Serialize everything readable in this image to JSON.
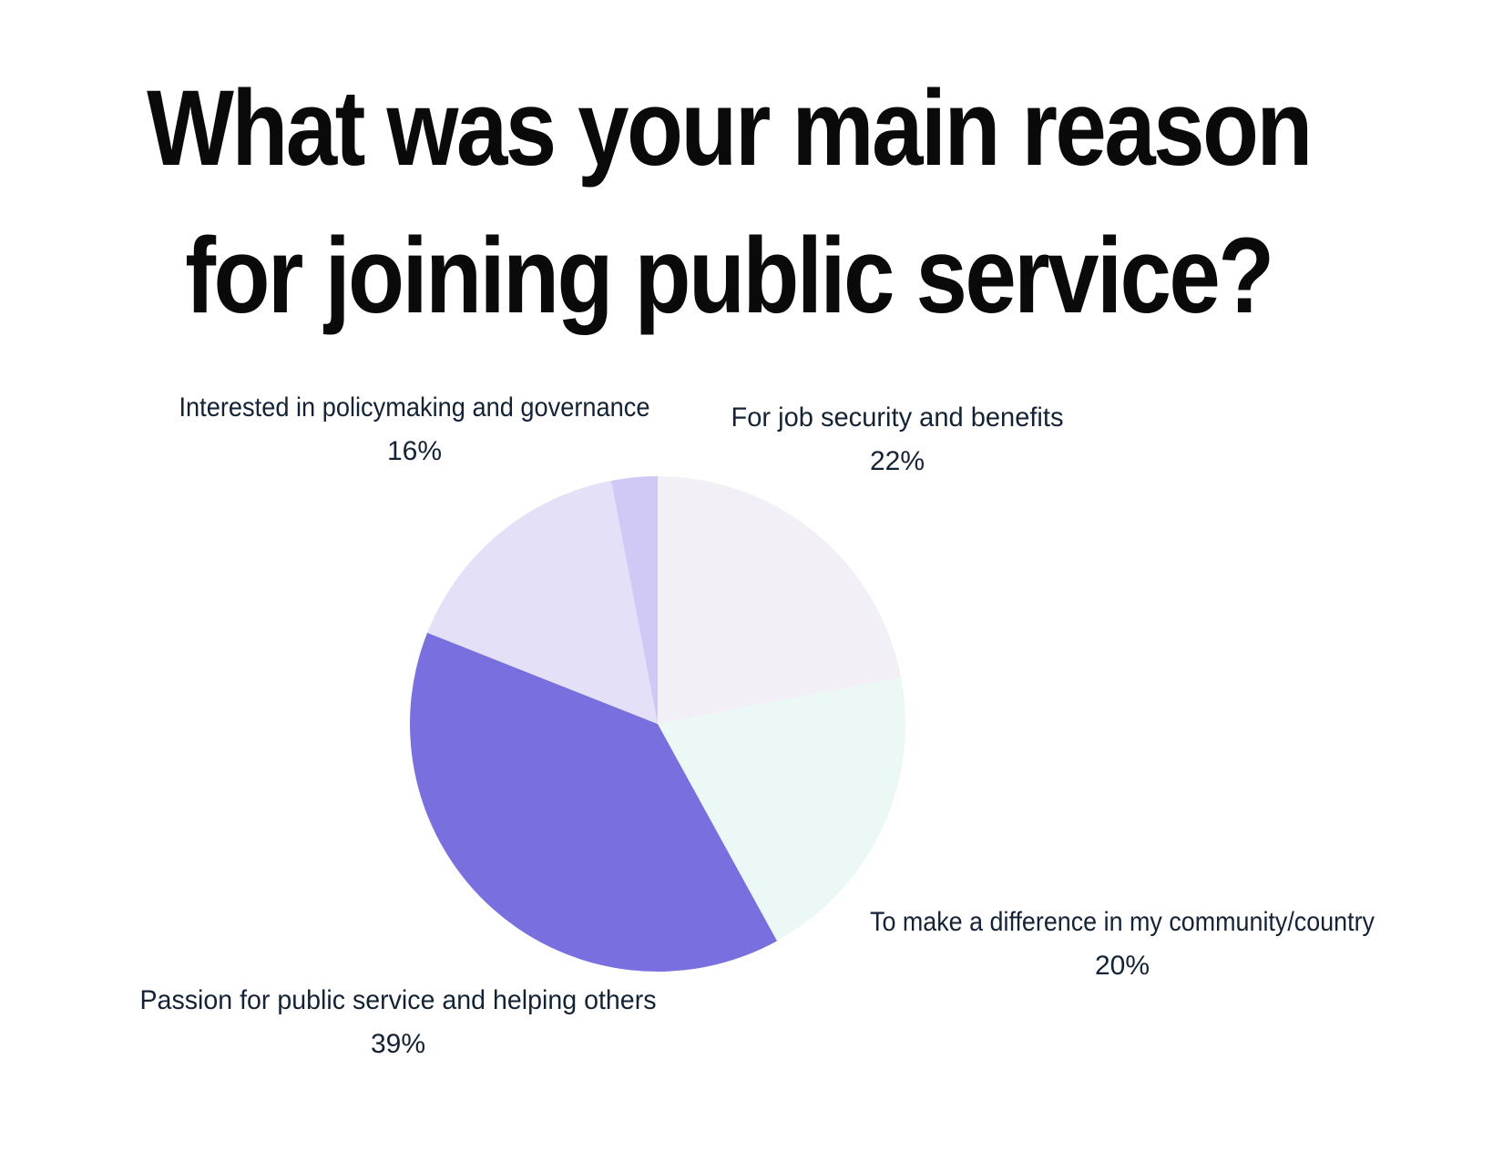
{
  "chart_data": {
    "type": "pie",
    "title": "What was your main reason for joining public service?",
    "start_angle_deg": 0,
    "direction": "clockwise",
    "slices": [
      {
        "label": "For job security and benefits",
        "value": 22,
        "value_label": "22%",
        "color": "#f2f0f6"
      },
      {
        "label": "To make a difference in my community/country",
        "value": 20,
        "value_label": "20%",
        "color": "#ebf8f5"
      },
      {
        "label": "Passion for public service and helping others",
        "value": 39,
        "value_label": "39%",
        "color": "#796fdf"
      },
      {
        "label": "Interested in policymaking and governance",
        "value": 16,
        "value_label": "16%",
        "color": "#e3e0f8"
      },
      {
        "label": "",
        "value": 3,
        "value_label": "",
        "color": "#d0c9f6"
      }
    ]
  }
}
